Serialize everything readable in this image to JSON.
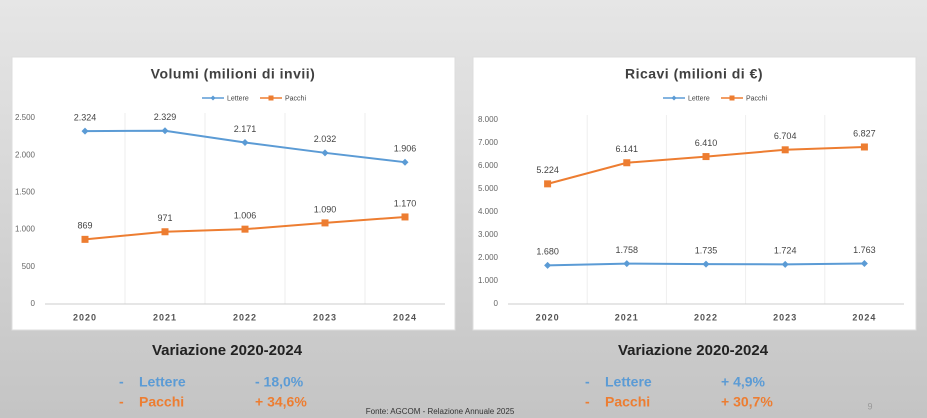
{
  "chart_data": [
    {
      "type": "line",
      "title": "Volumi (milioni di invii)",
      "categories": [
        "2020",
        "2021",
        "2022",
        "2023",
        "2024"
      ],
      "series": [
        {
          "name": "Lettere",
          "color": "#5b9bd5",
          "values": [
            2324,
            2329,
            2171,
            2032,
            1906
          ],
          "value_labels": [
            "2.324",
            "2.329",
            "2.171",
            "2.032",
            "1.906"
          ]
        },
        {
          "name": "Pacchi",
          "color": "#ed7d31",
          "values": [
            869,
            971,
            1006,
            1090,
            1170
          ],
          "value_labels": [
            "869",
            "971",
            "1.006",
            "1.090",
            "1.170"
          ]
        }
      ],
      "ylim": [
        0,
        2500
      ],
      "yticks": [
        0,
        500,
        {
          "value": 1000,
          "label": "1.000"
        },
        {
          "value": 1500,
          "label": "1.500"
        },
        {
          "value": 2000,
          "label": "2.000"
        },
        {
          "value": 2500,
          "label": "2.500"
        }
      ],
      "legend": "top"
    },
    {
      "type": "line",
      "title": "Ricavi (milioni di €)",
      "categories": [
        "2020",
        "2021",
        "2022",
        "2023",
        "2024"
      ],
      "series": [
        {
          "name": "Lettere",
          "color": "#5b9bd5",
          "values": [
            1680,
            1758,
            1735,
            1724,
            1763
          ],
          "value_labels": [
            "1.680",
            "1.758",
            "1.735",
            "1.724",
            "1.763"
          ]
        },
        {
          "name": "Pacchi",
          "color": "#ed7d31",
          "values": [
            5224,
            6141,
            6410,
            6704,
            6827
          ],
          "value_labels": [
            "5.224",
            "6.141",
            "6.410",
            "6.704",
            "6.827"
          ]
        }
      ],
      "ylim": [
        0,
        8000
      ],
      "yticks": [
        0,
        {
          "value": 1000,
          "label": "1.000"
        },
        {
          "value": 2000,
          "label": "2.000"
        },
        {
          "value": 3000,
          "label": "3.000"
        },
        {
          "value": 4000,
          "label": "4.000"
        },
        {
          "value": 5000,
          "label": "5.000"
        },
        {
          "value": 6000,
          "label": "6.000"
        },
        {
          "value": 7000,
          "label": "7.000"
        },
        {
          "value": 8000,
          "label": "8.000"
        }
      ],
      "legend": "top"
    }
  ],
  "summaries": [
    {
      "title": "Variazione 2020-2024",
      "items": [
        {
          "bullet": "-",
          "name": "Lettere",
          "change": "- 18,0%",
          "color": "#5b9bd5"
        },
        {
          "bullet": "-",
          "name": "Pacchi",
          "change": "+ 34,6%",
          "color": "#ed7d31"
        }
      ]
    },
    {
      "title": "Variazione 2020-2024",
      "items": [
        {
          "bullet": "-",
          "name": "Lettere",
          "change": "+ 4,9%",
          "color": "#5b9bd5"
        },
        {
          "bullet": "-",
          "name": "Pacchi",
          "change": "+ 30,7%",
          "color": "#ed7d31"
        }
      ]
    }
  ],
  "footer": {
    "source": "Fonte: AGCOM - Relazione Annuale 2025",
    "page": "9"
  }
}
